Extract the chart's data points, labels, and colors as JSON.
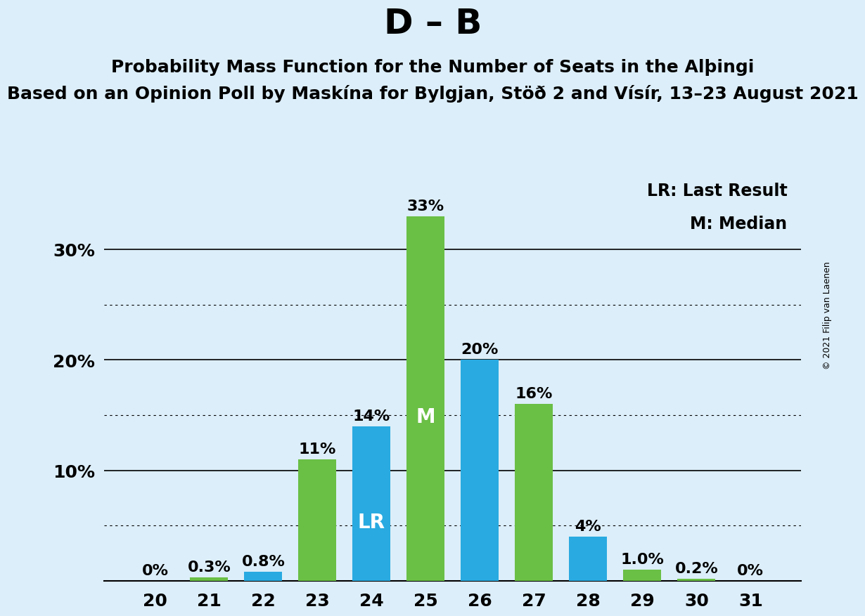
{
  "title": "D – B",
  "subtitle1": "Probability Mass Function for the Number of Seats in the Alþingi",
  "subtitle2": "Based on an Opinion Poll by Maskína for Bylgjan, Stöð 2 and Vísír, 13–23 August 2021",
  "copyright": "© 2021 Filip van Laenen",
  "seats": [
    20,
    21,
    22,
    23,
    24,
    25,
    26,
    27,
    28,
    29,
    30,
    31
  ],
  "bar_colors": [
    "#6abf45",
    "#6abf45",
    "#29aae1",
    "#6abf45",
    "#29aae1",
    "#6abf45",
    "#29aae1",
    "#6abf45",
    "#29aae1",
    "#6abf45",
    "#6abf45",
    "#6abf45"
  ],
  "heights": [
    0.0,
    0.3,
    0.8,
    11.0,
    14.0,
    33.0,
    20.0,
    16.0,
    4.0,
    1.0,
    0.2,
    0.0
  ],
  "labels": [
    "0%",
    "0.3%",
    "0.8%",
    "11%",
    "14%",
    "33%",
    "20%",
    "16%",
    "4%",
    "1.0%",
    "0.2%",
    "0%"
  ],
  "green_color": "#6abf45",
  "blue_color": "#29aae1",
  "background_color": "#dceef9",
  "dotted_yticks": [
    5,
    15,
    25
  ],
  "solid_yticks": [
    10,
    20,
    30
  ],
  "ylim": [
    0,
    37
  ],
  "bar_width": 0.7,
  "legend_lr": "LR: Last Result",
  "legend_m": "M: Median",
  "lr_idx": 4,
  "median_idx": 5,
  "title_fontsize": 36,
  "subtitle1_fontsize": 18,
  "subtitle2_fontsize": 18,
  "axis_tick_fontsize": 18,
  "bar_label_fontsize": 16,
  "inner_label_fontsize": 20,
  "legend_fontsize": 17,
  "copyright_fontsize": 9
}
